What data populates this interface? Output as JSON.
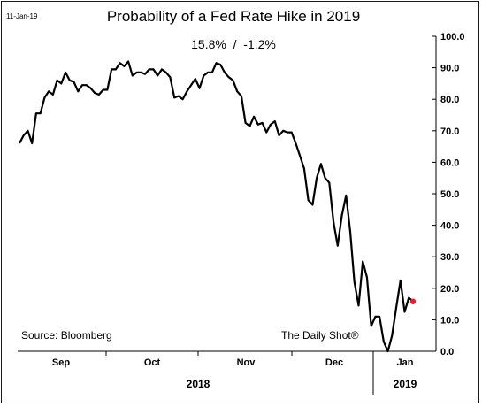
{
  "chart_data": {
    "type": "line",
    "date_stamp": "11-Jan-19",
    "title": "Probability of a Fed Rate Hike in 2019",
    "subtitle": "15.8%  /  -1.2%",
    "source": "Source: Bloomberg",
    "credit": "The Daily Shot®",
    "ylim": [
      0,
      100
    ],
    "y_ticks": [
      "0.0",
      "10.0",
      "20.0",
      "30.0",
      "40.0",
      "50.0",
      "60.0",
      "70.0",
      "80.0",
      "90.0",
      "100.0"
    ],
    "month_labels": [
      "Sep",
      "Oct",
      "Nov",
      "Dec",
      "Jan"
    ],
    "year_labels": [
      "2018",
      "2019"
    ],
    "grid": false,
    "colors": {
      "line": "#000000",
      "last_point": "#e8202a"
    },
    "series": [
      {
        "values": [
          66,
          68.5,
          70,
          66,
          75.5,
          75.5,
          80.5,
          82.5,
          81.5,
          86,
          85,
          88.5,
          86,
          85.5,
          82.5,
          84.5,
          84.5,
          83.5,
          82,
          81.5,
          83,
          83,
          89.5,
          89.5,
          91.5,
          90.5,
          92,
          87.5,
          88.5,
          88.5,
          88,
          89.5,
          89.5,
          87.5,
          89.5,
          88.5,
          87,
          80.5,
          81,
          80,
          82.5,
          84.5,
          86.5,
          83.5,
          87.5,
          88.5,
          88.5,
          91.5,
          91,
          88.5,
          87,
          86,
          82.5,
          81,
          72.5,
          71.5,
          74.5,
          72,
          72.5,
          69.5,
          72,
          73,
          68.5,
          70,
          69.5,
          69.5,
          66,
          62,
          58,
          48,
          46.5,
          55,
          59.5,
          55,
          53.5,
          41,
          33.5,
          43,
          49.5,
          38,
          22,
          14.5,
          28.5,
          23.5,
          8,
          11,
          11,
          3,
          0,
          5,
          14,
          22.5,
          12.5,
          17,
          15.8
        ]
      }
    ]
  }
}
